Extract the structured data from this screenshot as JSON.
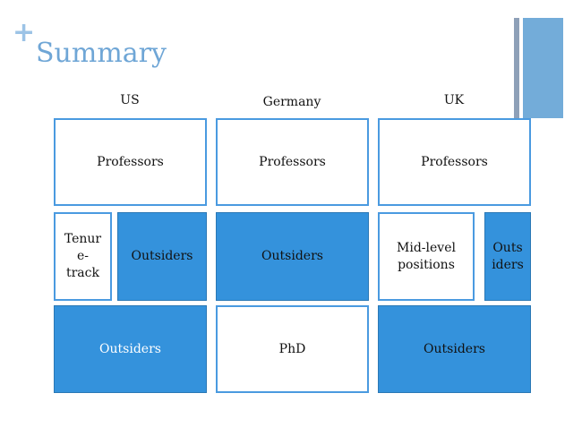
{
  "title": "Summary",
  "colors": {
    "accent": "#3492dc",
    "title": "#6fa6d6"
  },
  "columns": [
    {
      "header": "US",
      "professors": "Professors",
      "middle": [
        {
          "label": "Tenur e- track",
          "lines": [
            "Tenur",
            "e-",
            "track"
          ],
          "filled": false
        },
        {
          "label": "Outsiders",
          "filled": true
        }
      ],
      "bottom": {
        "label": "Outsiders",
        "filled": true
      }
    },
    {
      "header": "Germany",
      "professors": "Professors",
      "middle": [
        {
          "label": "Outsiders",
          "filled": true
        }
      ],
      "bottom": {
        "label": "PhD",
        "filled": false
      }
    },
    {
      "header": "UK",
      "professors": "Professors",
      "middle": [
        {
          "label": "Mid-level positions",
          "lines": [
            "Mid-level",
            "positions"
          ],
          "filled": false
        },
        {
          "label": "Outs iders",
          "lines": [
            "Outs",
            "iders"
          ],
          "filled": true
        }
      ],
      "bottom": {
        "label": "Outsiders",
        "filled": true
      }
    }
  ]
}
